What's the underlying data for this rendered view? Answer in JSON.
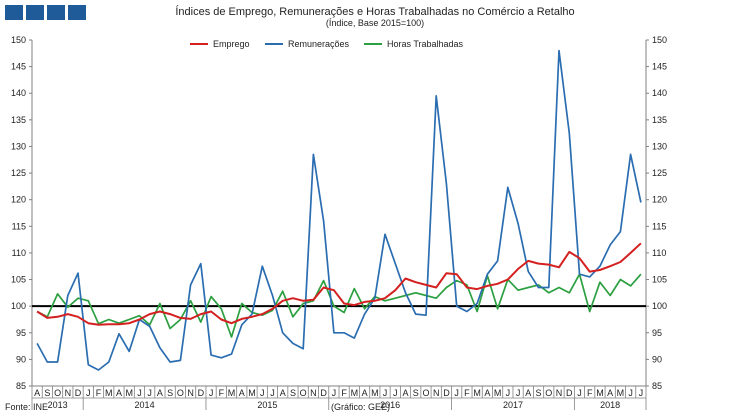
{
  "title": "Índices de Emprego, Remunerações e Horas Trabalhadas no Comércio a Retalho",
  "subtitle": "(Índice, Base 2015=100)",
  "source": "Fonte: INE",
  "credit": "(Gráfico: GEE)",
  "colors": {
    "emprego": "#d42020",
    "remuneracoes": "#2a6db0",
    "horas": "#2ca040",
    "reference": "#000000"
  },
  "chart_data": {
    "type": "line",
    "xlabel": "",
    "ylabel": "",
    "ylim": [
      85,
      150
    ],
    "yticks": [
      85,
      90,
      95,
      100,
      105,
      110,
      115,
      120,
      125,
      130,
      135,
      140,
      145,
      150
    ],
    "reference_line": 100,
    "legend_position": "top",
    "grid": false,
    "months": [
      "A",
      "S",
      "O",
      "N",
      "D",
      "J",
      "F",
      "M",
      "A",
      "M",
      "J",
      "J",
      "A",
      "S",
      "O",
      "N",
      "D",
      "J",
      "F",
      "M",
      "A",
      "M",
      "J",
      "J",
      "A",
      "S",
      "O",
      "N",
      "D",
      "J",
      "F",
      "M",
      "A",
      "M",
      "J",
      "J",
      "A",
      "S",
      "O",
      "N",
      "D",
      "J",
      "F",
      "M",
      "A",
      "M",
      "J",
      "J",
      "A",
      "S",
      "O",
      "N",
      "D",
      "J",
      "F",
      "M",
      "A",
      "M",
      "J",
      "J"
    ],
    "years": [
      {
        "label": "2013",
        "start": 0,
        "end": 4
      },
      {
        "label": "2014",
        "start": 5,
        "end": 16
      },
      {
        "label": "2015",
        "start": 17,
        "end": 28
      },
      {
        "label": "2016",
        "start": 29,
        "end": 40
      },
      {
        "label": "2017",
        "start": 41,
        "end": 52
      },
      {
        "label": "2018",
        "start": 53,
        "end": 59
      }
    ],
    "series": [
      {
        "name": "Emprego",
        "key": "emprego",
        "values": [
          99.0,
          97.8,
          98.0,
          98.5,
          98.0,
          96.8,
          96.5,
          96.6,
          96.6,
          96.8,
          97.5,
          98.5,
          99.0,
          98.5,
          97.8,
          97.6,
          98.5,
          99.0,
          97.5,
          96.8,
          97.6,
          98.0,
          98.5,
          99.5,
          101.0,
          101.5,
          101.0,
          101.2,
          103.5,
          103.0,
          100.5,
          100.2,
          100.8,
          101.0,
          101.5,
          103.0,
          105.2,
          104.5,
          104.0,
          103.5,
          106.2,
          106.0,
          103.5,
          103.2,
          103.8,
          104.2,
          105.0,
          107.0,
          108.5,
          108.0,
          107.8,
          107.3,
          110.2,
          109.0,
          106.5,
          106.8,
          107.5,
          108.3,
          110.0,
          111.8
        ]
      },
      {
        "name": "Remunerações",
        "key": "remuneracoes",
        "values": [
          93.0,
          89.5,
          89.5,
          102.0,
          106.2,
          89.0,
          88.0,
          89.5,
          94.8,
          91.5,
          97.5,
          96.2,
          92.2,
          89.5,
          89.8,
          104.0,
          108.0,
          90.8,
          90.3,
          91.0,
          96.5,
          98.5,
          107.5,
          102.0,
          95.0,
          93.0,
          92.0,
          128.5,
          116.0,
          95.0,
          95.0,
          94.0,
          98.5,
          101.5,
          113.5,
          108.0,
          102.5,
          98.5,
          98.3,
          139.5,
          123.0,
          100.0,
          99.0,
          100.5,
          106.0,
          108.5,
          122.3,
          115.5,
          106.5,
          103.5,
          103.5,
          148.0,
          132.5,
          106.0,
          105.5,
          107.5,
          111.5,
          114.0,
          128.5,
          119.5
        ]
      },
      {
        "name": "Horas Trabalhadas",
        "key": "horas",
        "values": [
          99.0,
          98.0,
          102.3,
          99.8,
          101.5,
          101.0,
          96.7,
          97.5,
          96.8,
          97.5,
          98.2,
          96.5,
          100.5,
          95.8,
          97.5,
          101.0,
          97.0,
          101.8,
          99.5,
          94.2,
          100.5,
          98.8,
          98.3,
          99.2,
          102.8,
          98.0,
          100.5,
          101.0,
          104.8,
          100.0,
          98.8,
          103.3,
          99.5,
          101.8,
          101.0,
          101.5,
          102.0,
          102.5,
          102.0,
          101.5,
          103.5,
          104.8,
          104.0,
          99.0,
          105.7,
          99.5,
          105.0,
          103.0,
          103.5,
          104.0,
          102.5,
          103.5,
          102.5,
          106.0,
          99.0,
          104.5,
          102.0,
          105.0,
          103.8,
          106.0
        ]
      }
    ]
  }
}
